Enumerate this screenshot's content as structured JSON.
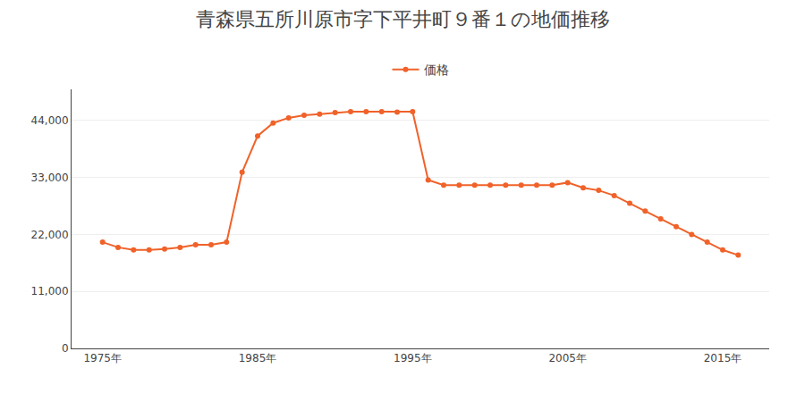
{
  "chart_data": {
    "type": "line",
    "title": "青森県五所川原市字下平井町９番１の地価推移",
    "x": [
      1975,
      1976,
      1977,
      1978,
      1979,
      1980,
      1981,
      1982,
      1983,
      1984,
      1985,
      1986,
      1987,
      1988,
      1989,
      1990,
      1991,
      1992,
      1993,
      1994,
      1995,
      1996,
      1997,
      1998,
      1999,
      2000,
      2001,
      2002,
      2003,
      2004,
      2005,
      2006,
      2007,
      2008,
      2009,
      2010,
      2011,
      2012,
      2013,
      2014,
      2015,
      2016
    ],
    "series": [
      {
        "name": "価格",
        "color": "#F0622A",
        "marker": "circle",
        "values": [
          20500,
          19500,
          19000,
          19000,
          19200,
          19500,
          20000,
          20000,
          20500,
          34000,
          41000,
          43500,
          44500,
          45000,
          45200,
          45500,
          45700,
          45700,
          45700,
          45600,
          45700,
          32500,
          31500,
          31500,
          31500,
          31500,
          31500,
          31500,
          31500,
          31500,
          32000,
          31000,
          30500,
          29500,
          28000,
          26500,
          25000,
          23500,
          22000,
          20500,
          19000,
          18000
        ]
      }
    ],
    "xlim": [
      1973,
      2018
    ],
    "xticks": [
      {
        "value": 1975,
        "label": "1975年"
      },
      {
        "value": 1985,
        "label": "1985年"
      },
      {
        "value": 1995,
        "label": "1995年"
      },
      {
        "value": 2005,
        "label": "2005年"
      },
      {
        "value": 2015,
        "label": "2015年"
      }
    ],
    "ylim": [
      0,
      50000
    ],
    "yticks": [
      0,
      {
        "value": 11000,
        "label": "11,000"
      },
      {
        "value": 22000,
        "label": "22,000"
      },
      {
        "value": 33000,
        "label": "33,000"
      },
      {
        "value": 44000,
        "label": "44,000"
      }
    ],
    "grid": "y",
    "legend": "top"
  }
}
